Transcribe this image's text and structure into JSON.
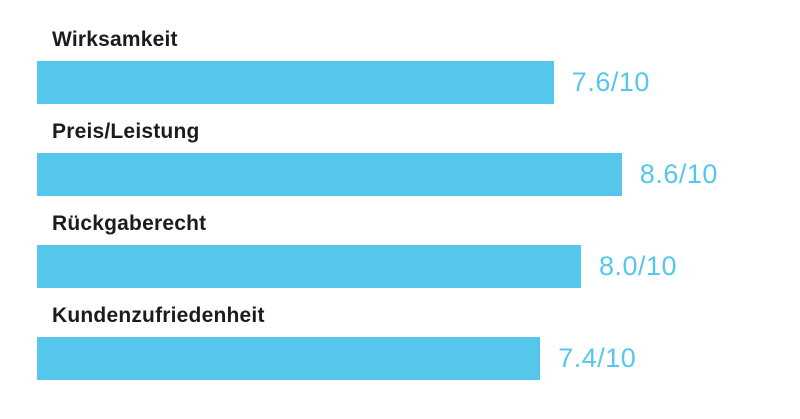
{
  "chart_data": {
    "type": "bar",
    "orientation": "horizontal",
    "title": "",
    "xlabel": "",
    "ylabel": "",
    "xlim": [
      0,
      10
    ],
    "grid": false,
    "legend": false,
    "categories": [
      "Wirksamkeit",
      "Preis/Leistung",
      "Rückgaberecht",
      "Kundenzufriedenheit"
    ],
    "values": [
      7.6,
      8.6,
      8.0,
      7.4
    ],
    "value_labels": [
      "7.6/10",
      "8.6/10",
      "8.0/10",
      "7.4/10"
    ],
    "bar_color": "#55c7ed",
    "label_color": "#1c1c1c",
    "background_color": "#ffffff"
  }
}
